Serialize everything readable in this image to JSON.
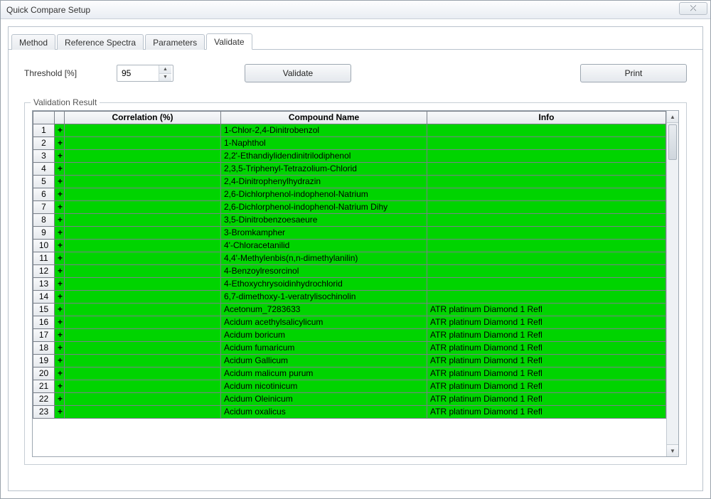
{
  "window": {
    "title": "Quick Compare Setup",
    "close_glyph": "⤫"
  },
  "tabs": {
    "items": [
      "Method",
      "Reference Spectra",
      "Parameters",
      "Validate"
    ],
    "active_index": 3
  },
  "controls": {
    "threshold_label": "Threshold [%]",
    "threshold_value": "95",
    "validate_label": "Validate",
    "print_label": "Print"
  },
  "result": {
    "legend": "Validation Result",
    "columns": {
      "rownum": "",
      "mark": "",
      "correlation": "Correlation (%)",
      "compound": "Compound Name",
      "info": "Info"
    },
    "row_bg_color": "#00d400",
    "rows": [
      {
        "n": 1,
        "mark": "+",
        "corr": "",
        "name": "1-Chlor-2,4-Dinitrobenzol",
        "info": ""
      },
      {
        "n": 2,
        "mark": "+",
        "corr": "",
        "name": "1-Naphthol",
        "info": ""
      },
      {
        "n": 3,
        "mark": "+",
        "corr": "",
        "name": "2,2'-Ethandiylidendinitrilodiphenol",
        "info": ""
      },
      {
        "n": 4,
        "mark": "+",
        "corr": "",
        "name": "2,3,5-Triphenyl-Tetrazolium-Chlorid",
        "info": ""
      },
      {
        "n": 5,
        "mark": "+",
        "corr": "",
        "name": "2,4-Dinitrophenylhydrazin",
        "info": ""
      },
      {
        "n": 6,
        "mark": "+",
        "corr": "",
        "name": "2,6-Dichlorphenol-indophenol-Natrium",
        "info": ""
      },
      {
        "n": 7,
        "mark": "+",
        "corr": "",
        "name": "2,6-Dichlorphenol-indophenol-Natrium Dihy",
        "info": ""
      },
      {
        "n": 8,
        "mark": "+",
        "corr": "",
        "name": "3,5-Dinitrobenzoesaeure",
        "info": ""
      },
      {
        "n": 9,
        "mark": "+",
        "corr": "",
        "name": "3-Bromkampher",
        "info": ""
      },
      {
        "n": 10,
        "mark": "+",
        "corr": "",
        "name": "4'-Chloracetanilid",
        "info": ""
      },
      {
        "n": 11,
        "mark": "+",
        "corr": "",
        "name": "4,4'-Methylenbis(n,n-dimethylanilin)",
        "info": ""
      },
      {
        "n": 12,
        "mark": "+",
        "corr": "",
        "name": "4-Benzoylresorcinol",
        "info": ""
      },
      {
        "n": 13,
        "mark": "+",
        "corr": "",
        "name": "4-Ethoxychrysoidinhydrochlorid",
        "info": ""
      },
      {
        "n": 14,
        "mark": "+",
        "corr": "",
        "name": "6,7-dimethoxy-1-veratrylisochinolin",
        "info": ""
      },
      {
        "n": 15,
        "mark": "+",
        "corr": "",
        "name": "Acetonum_7283633",
        "info": "ATR platinum Diamond 1 Refl"
      },
      {
        "n": 16,
        "mark": "+",
        "corr": "",
        "name": "Acidum acethylsalicylicum",
        "info": "ATR platinum Diamond 1 Refl"
      },
      {
        "n": 17,
        "mark": "+",
        "corr": "",
        "name": "Acidum boricum",
        "info": "ATR platinum Diamond 1 Refl"
      },
      {
        "n": 18,
        "mark": "+",
        "corr": "",
        "name": "Acidum fumaricum",
        "info": "ATR platinum Diamond 1 Refl"
      },
      {
        "n": 19,
        "mark": "+",
        "corr": "",
        "name": "Acidum Gallicum",
        "info": "ATR platinum Diamond 1 Refl"
      },
      {
        "n": 20,
        "mark": "+",
        "corr": "",
        "name": "Acidum malicum purum",
        "info": "ATR platinum Diamond 1 Refl"
      },
      {
        "n": 21,
        "mark": "+",
        "corr": "",
        "name": "Acidum nicotinicum",
        "info": "ATR platinum Diamond 1 Refl"
      },
      {
        "n": 22,
        "mark": "+",
        "corr": "",
        "name": "Acidum Oleinicum",
        "info": "ATR platinum Diamond 1 Refl"
      },
      {
        "n": 23,
        "mark": "+",
        "corr": "",
        "name": "Acidum oxalicus",
        "info": "ATR platinum Diamond 1 Refl"
      }
    ]
  },
  "colors": {
    "window_border": "#9aa3ac",
    "panel_border": "#b9c2cc",
    "grid_border": "#7a8089",
    "header_grad_top": "#f7f8fa",
    "header_grad_bot": "#e6e9ed",
    "row_pass_bg": "#00d400",
    "background": "#ffffff"
  }
}
